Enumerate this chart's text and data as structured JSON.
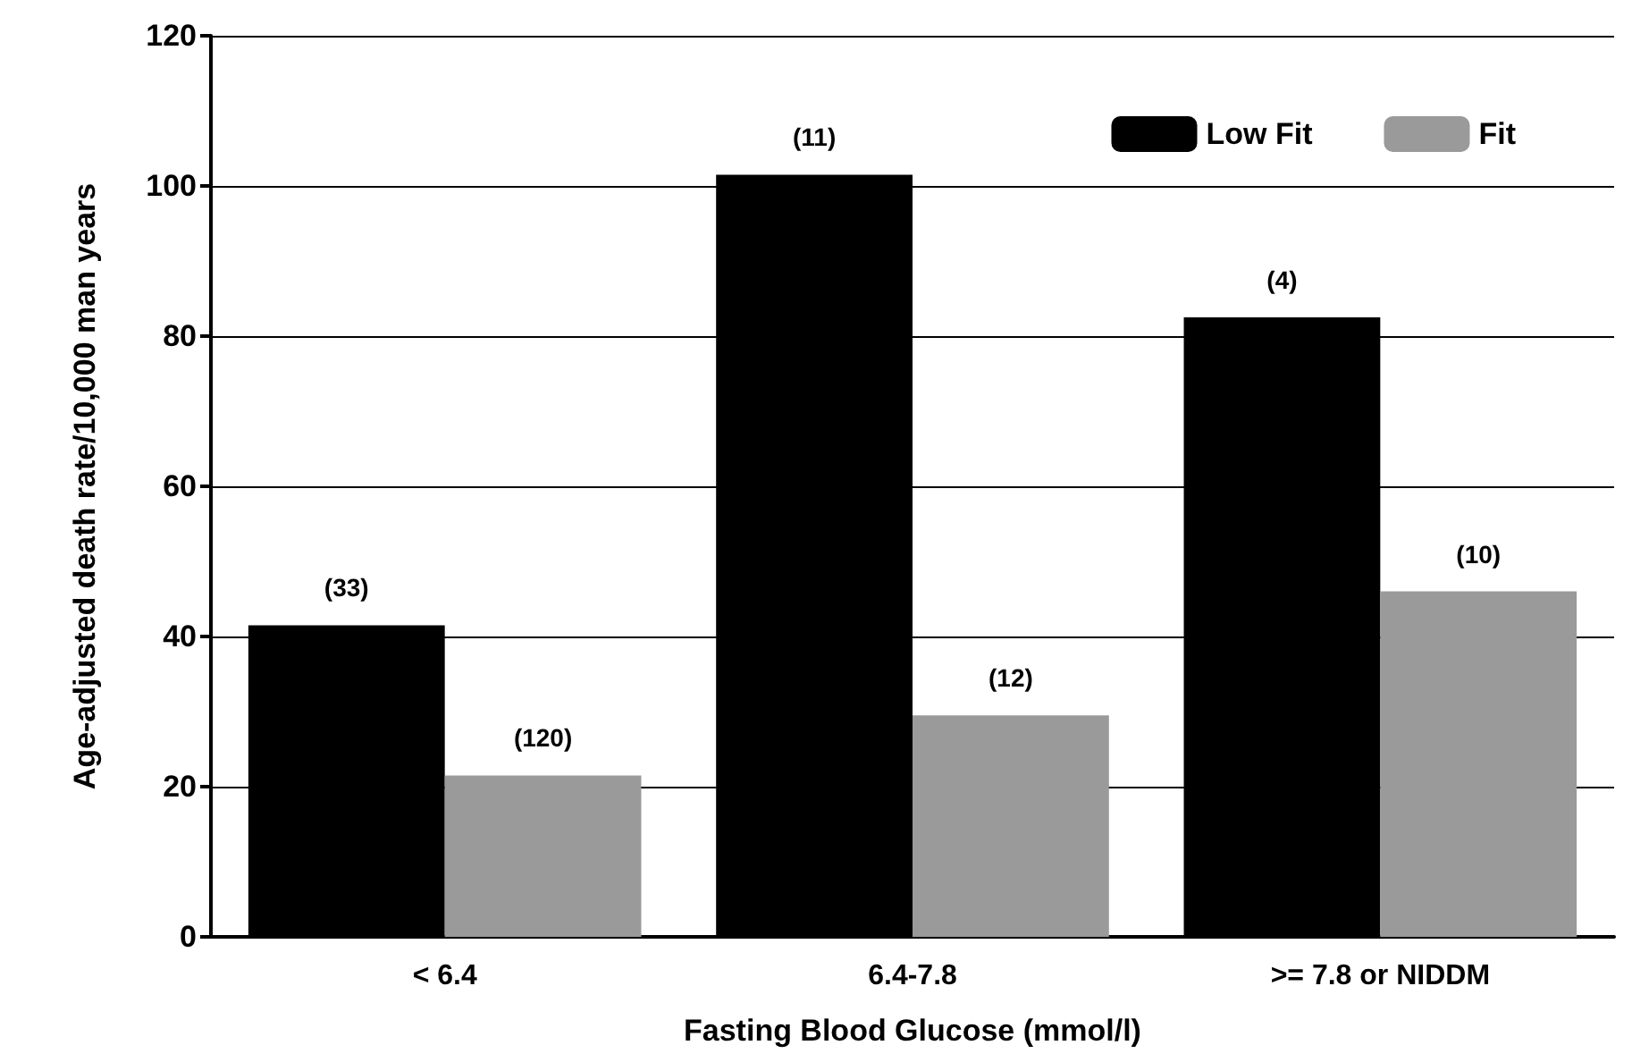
{
  "chart_data": {
    "type": "bar",
    "xlabel": "Fasting Blood Glucose (mmol/l)",
    "ylabel": "Age-adjusted death rate/10,000 man years",
    "categories": [
      "< 6.4",
      "6.4-7.8",
      ">= 7.8 or NIDDM"
    ],
    "series": [
      {
        "name": "Low Fit",
        "color": "#000000",
        "values": [
          41.5,
          101.5,
          82.5
        ]
      },
      {
        "name": "Fit",
        "color": "#9a9a9a",
        "values": [
          21.5,
          29.5,
          46
        ]
      }
    ],
    "annotations": [
      "(33)",
      "(120)",
      "(11)",
      "(12)",
      "(4)",
      "(10)"
    ],
    "ylim": [
      0,
      120
    ],
    "yticks": [
      0,
      20,
      40,
      60,
      80,
      100,
      120
    ],
    "grid": "y",
    "legend": "top right"
  }
}
